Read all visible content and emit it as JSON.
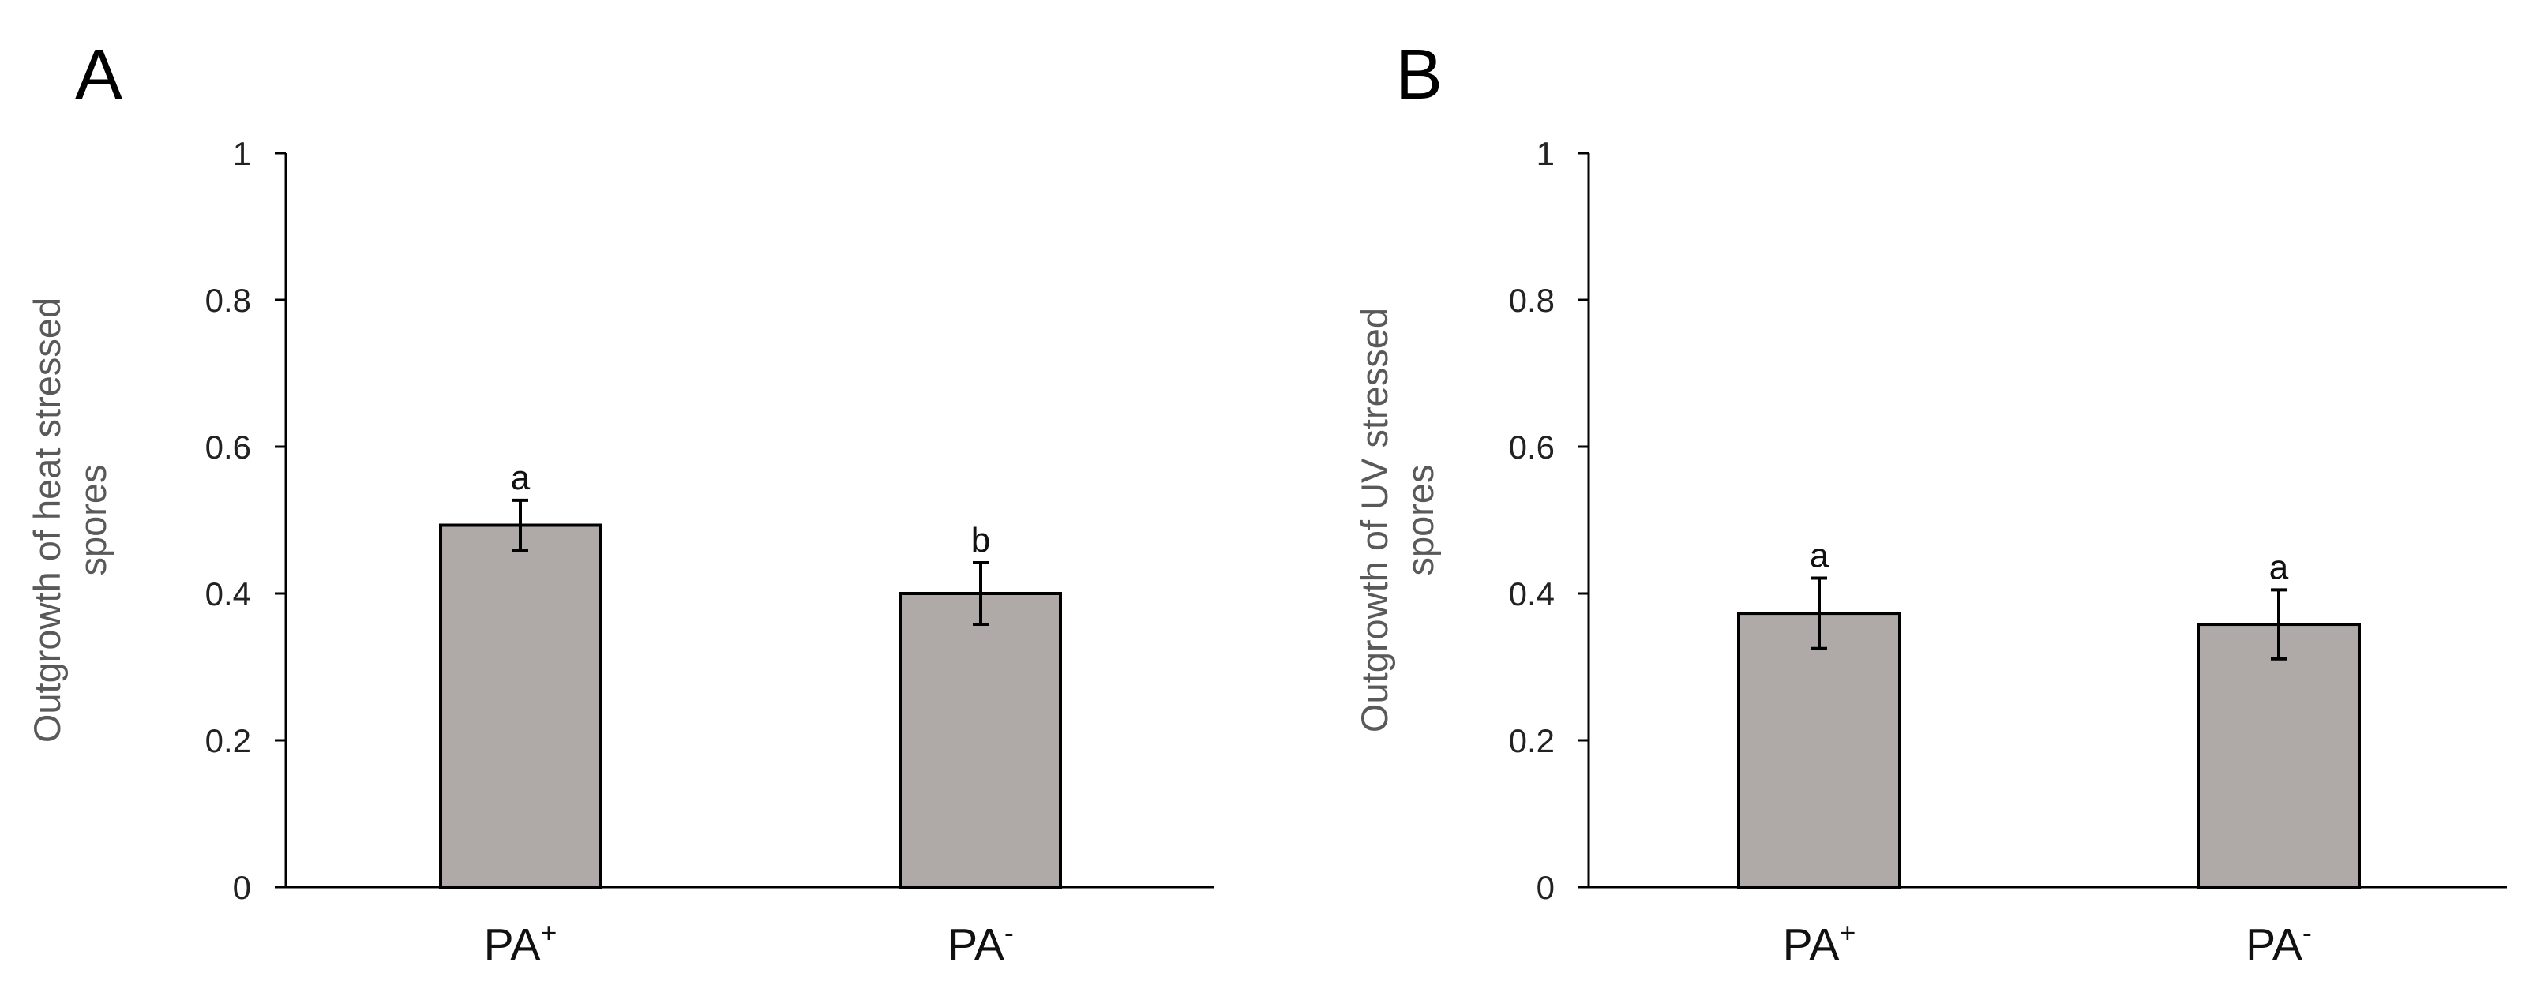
{
  "chart_data": [
    {
      "type": "bar",
      "panel": "A",
      "categories": [
        "PA+",
        "PA-"
      ],
      "category_labels": [
        {
          "base": "PA",
          "sup": "+"
        },
        {
          "base": "PA",
          "sup": "-"
        }
      ],
      "values": [
        0.493,
        0.4
      ],
      "errors": [
        0.034,
        0.042
      ],
      "significance": [
        "a",
        "b"
      ],
      "ylabel_lines": [
        "Outgrowth of heat stressed",
        "spores"
      ],
      "ylim": [
        0,
        1
      ],
      "yticks": [
        0,
        0.2,
        0.4,
        0.6,
        0.8,
        1
      ],
      "ytick_labels": [
        "0",
        "0.2",
        "0.4",
        "0.6",
        "0.8",
        "1"
      ],
      "bar_color": "#afaaa8",
      "grid": false
    },
    {
      "type": "bar",
      "panel": "B",
      "categories": [
        "PA+",
        "PA-"
      ],
      "category_labels": [
        {
          "base": "PA",
          "sup": "+"
        },
        {
          "base": "PA",
          "sup": "-"
        }
      ],
      "values": [
        0.373,
        0.358
      ],
      "errors": [
        0.048,
        0.047
      ],
      "significance": [
        "a",
        "a"
      ],
      "ylabel_lines": [
        "Outgrowth of UV stressed",
        "spores"
      ],
      "ylim": [
        0,
        1
      ],
      "yticks": [
        0,
        0.2,
        0.4,
        0.6,
        0.8,
        1
      ],
      "ytick_labels": [
        "0",
        "0.2",
        "0.4",
        "0.6",
        "0.8",
        "1"
      ],
      "bar_color": "#afaaa8",
      "grid": false
    }
  ]
}
